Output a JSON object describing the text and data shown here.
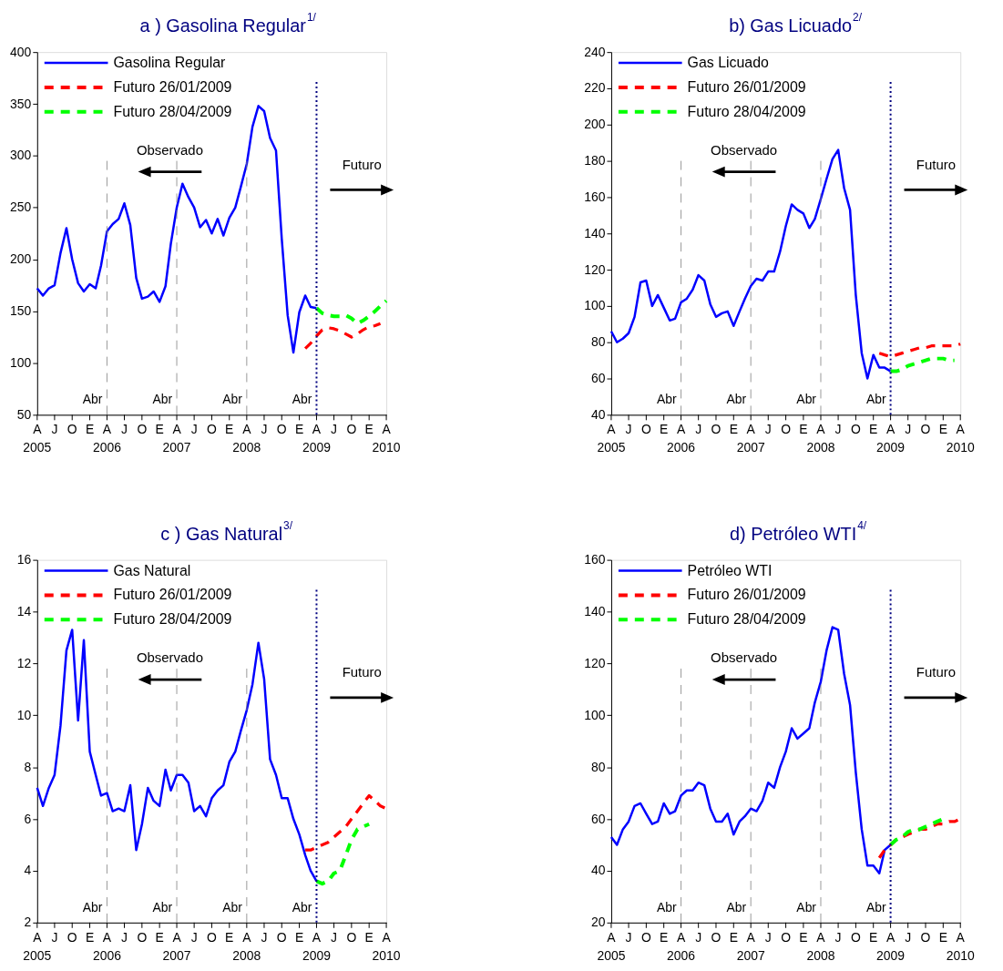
{
  "chart_data": [
    {
      "type": "line",
      "title": "a ) Gasolina Regular$^{1/}$",
      "legend": "top left",
      "x": [
        "2005-04",
        "2005-05",
        "2005-06",
        "2005-07",
        "2005-08",
        "2005-09",
        "2005-10",
        "2005-11",
        "2005-12",
        "2006-01",
        "2006-02",
        "2006-03",
        "2006-04",
        "2006-05",
        "2006-06",
        "2006-07",
        "2006-08",
        "2006-09",
        "2006-10",
        "2006-11",
        "2006-12",
        "2007-01",
        "2007-02",
        "2007-03",
        "2007-04",
        "2007-05",
        "2007-06",
        "2007-07",
        "2007-08",
        "2007-09",
        "2007-10",
        "2007-11",
        "2007-12",
        "2008-01",
        "2008-02",
        "2008-03",
        "2008-04",
        "2008-05",
        "2008-06",
        "2008-07",
        "2008-08",
        "2008-09",
        "2008-10",
        "2008-11",
        "2008-12",
        "2009-01",
        "2009-02",
        "2009-03",
        "2009-04"
      ],
      "xlim": [
        "2005-04",
        "2010-04"
      ],
      "xticks": [
        {
          "value": "2005-04",
          "label": "2005"
        },
        {
          "value": "2005-07",
          "label": null
        },
        {
          "value": "2005-10",
          "label": null
        },
        {
          "value": "2006-01",
          "label": null
        },
        {
          "value": "2006-04",
          "label": "2006"
        },
        {
          "value": "2006-07",
          "label": null
        },
        {
          "value": "2006-10",
          "label": null
        },
        {
          "value": "2007-01",
          "label": null
        },
        {
          "value": "2007-04",
          "label": "2007"
        },
        {
          "value": "2007-07",
          "label": null
        },
        {
          "value": "2007-10",
          "label": null
        },
        {
          "value": "2008-01",
          "label": null
        },
        {
          "value": "2008-04",
          "label": "2008"
        },
        {
          "value": "2008-07",
          "label": null
        },
        {
          "value": "2008-10",
          "label": null
        },
        {
          "value": "2009-01",
          "label": null
        },
        {
          "value": "2009-04",
          "label": "2009"
        },
        {
          "value": "2009-07",
          "label": null
        },
        {
          "value": "2009-10",
          "label": null
        },
        {
          "value": "2010-01",
          "label": null
        },
        {
          "value": "2010-04",
          "label": "2010"
        }
      ],
      "ylim": [
        50,
        400
      ],
      "yticks": [
        50,
        100,
        150,
        200,
        250,
        300,
        350,
        400
      ],
      "series": [
        {
          "name": "Gasolina Regular",
          "color": "#0000ff",
          "line_style": "solid",
          "values": [
            172,
            165,
            172,
            175,
            206,
            230,
            200,
            177,
            169,
            176,
            172,
            194,
            227,
            234,
            239,
            254,
            233,
            182,
            162,
            164,
            169,
            159,
            174,
            215,
            250,
            273,
            260,
            250,
            231,
            238,
            225,
            239,
            223,
            240,
            250,
            270,
            292,
            328,
            348,
            343,
            317,
            305,
            220,
            146,
            110,
            149,
            165,
            154,
            153
          ]
        },
        {
          "name": "Futuro 26/01/2009",
          "color": "#ff0000",
          "line_style": "dashed",
          "x": [
            "2009-02",
            "2009-03",
            "2009-04",
            "2009-05",
            "2009-06",
            "2009-07",
            "2009-08",
            "2009-09",
            "2009-10",
            "2009-11",
            "2009-12",
            "2010-01",
            "2010-02",
            "2010-03"
          ],
          "values": [
            114,
            119,
            126,
            132,
            134,
            133,
            131,
            128,
            125,
            128,
            132,
            135,
            136,
            138
          ]
        },
        {
          "name": "Futuro 28/04/2009",
          "color": "#00ff00",
          "line_style": "dashed",
          "x": [
            "2009-04",
            "2009-05",
            "2009-06",
            "2009-07",
            "2009-08",
            "2009-09",
            "2009-10",
            "2009-11",
            "2009-12",
            "2010-01",
            "2010-02",
            "2010-03",
            "2010-04"
          ],
          "values": [
            153,
            148,
            146,
            145,
            145,
            146,
            143,
            138,
            141,
            145,
            150,
            155,
            160
          ]
        }
      ],
      "ref_lines": [
        {
          "axis": "x",
          "value": "2006-04",
          "label": "Abr",
          "color": "#808080",
          "line_style": "dashed"
        },
        {
          "axis": "x",
          "value": "2007-04",
          "label": "Abr",
          "color": "#808080",
          "line_style": "dashed"
        },
        {
          "axis": "x",
          "value": "2008-04",
          "label": "Abr",
          "color": "#808080",
          "line_style": "dashed"
        },
        {
          "axis": "x",
          "value": "2009-04",
          "label": "Abr",
          "color": "#000080",
          "line_style": "dotted"
        }
      ],
      "annotations": [
        "Observado",
        "Futuro",
        "A",
        "J",
        "O",
        "E",
        "A",
        "J",
        "O",
        "E",
        "A",
        "J",
        "O",
        "E",
        "A",
        "J",
        "O",
        "E",
        "A",
        "J",
        "O",
        "E",
        "A"
      ]
    },
    {
      "type": "line",
      "title": "b) Gas Licuado$^{2/}$",
      "legend": "top left",
      "x": [
        "2005-04",
        "2005-05",
        "2005-06",
        "2005-07",
        "2005-08",
        "2005-09",
        "2005-10",
        "2005-11",
        "2005-12",
        "2006-01",
        "2006-02",
        "2006-03",
        "2006-04",
        "2006-05",
        "2006-06",
        "2006-07",
        "2006-08",
        "2006-09",
        "2006-10",
        "2006-11",
        "2006-12",
        "2007-01",
        "2007-02",
        "2007-03",
        "2007-04",
        "2007-05",
        "2007-06",
        "2007-07",
        "2007-08",
        "2007-09",
        "2007-10",
        "2007-11",
        "2007-12",
        "2008-01",
        "2008-02",
        "2008-03",
        "2008-04",
        "2008-05",
        "2008-06",
        "2008-07",
        "2008-08",
        "2008-09",
        "2008-10",
        "2008-11",
        "2008-12",
        "2009-01",
        "2009-02",
        "2009-03",
        "2009-04"
      ],
      "xlim": [
        "2005-04",
        "2010-04"
      ],
      "xticks": [
        {
          "value": "2005-04",
          "label": "2005"
        },
        {
          "value": "2005-07",
          "label": null
        },
        {
          "value": "2005-10",
          "label": null
        },
        {
          "value": "2006-01",
          "label": null
        },
        {
          "value": "2006-04",
          "label": "2006"
        },
        {
          "value": "2006-07",
          "label": null
        },
        {
          "value": "2006-10",
          "label": null
        },
        {
          "value": "2007-01",
          "label": null
        },
        {
          "value": "2007-04",
          "label": "2007"
        },
        {
          "value": "2007-07",
          "label": null
        },
        {
          "value": "2007-10",
          "label": null
        },
        {
          "value": "2008-01",
          "label": null
        },
        {
          "value": "2008-04",
          "label": "2008"
        },
        {
          "value": "2008-07",
          "label": null
        },
        {
          "value": "2008-10",
          "label": null
        },
        {
          "value": "2009-01",
          "label": null
        },
        {
          "value": "2009-04",
          "label": "2009"
        },
        {
          "value": "2009-07",
          "label": null
        },
        {
          "value": "2009-10",
          "label": null
        },
        {
          "value": "2010-01",
          "label": null
        },
        {
          "value": "2010-04",
          "label": "2010"
        }
      ],
      "ylim": [
        40,
        240
      ],
      "yticks": [
        40,
        60,
        80,
        100,
        120,
        140,
        160,
        180,
        200,
        220,
        240
      ],
      "series": [
        {
          "name": "Gas Licuado",
          "color": "#0000ff",
          "line_style": "solid",
          "values": [
            86,
            80,
            82,
            85,
            94,
            113,
            114,
            100,
            106,
            99,
            92,
            93,
            102,
            104,
            109,
            117,
            114,
            101,
            94,
            96,
            97,
            89,
            97,
            104,
            111,
            115,
            114,
            119,
            119,
            130,
            144,
            156,
            153,
            151,
            143,
            148,
            159,
            170,
            181,
            186,
            165,
            153,
            106,
            74,
            60,
            73,
            66,
            66,
            64
          ]
        },
        {
          "name": "Futuro 26/01/2009",
          "color": "#ff0000",
          "line_style": "dashed",
          "x": [
            "2009-02",
            "2009-03",
            "2009-04",
            "2009-05",
            "2009-06",
            "2009-07",
            "2009-08",
            "2009-09",
            "2009-10",
            "2009-11",
            "2009-12",
            "2010-01",
            "2010-02",
            "2010-03",
            "2010-04"
          ],
          "values": [
            74,
            73,
            72,
            73,
            74,
            75,
            76,
            77,
            77,
            78,
            78,
            78,
            78,
            78,
            79
          ]
        },
        {
          "name": "Futuro 28/04/2009",
          "color": "#00ff00",
          "line_style": "dashed",
          "x": [
            "2009-04",
            "2009-05",
            "2009-06",
            "2009-07",
            "2009-08",
            "2009-09",
            "2009-10",
            "2009-11",
            "2009-12",
            "2010-01",
            "2010-02",
            "2010-03"
          ],
          "values": [
            64,
            64,
            65,
            67,
            68,
            69,
            70,
            71,
            71,
            71,
            70,
            70
          ]
        }
      ],
      "ref_lines": [
        {
          "axis": "x",
          "value": "2006-04",
          "label": "Abr",
          "color": "#808080",
          "line_style": "dashed"
        },
        {
          "axis": "x",
          "value": "2007-04",
          "label": "Abr",
          "color": "#808080",
          "line_style": "dashed"
        },
        {
          "axis": "x",
          "value": "2008-04",
          "label": "Abr",
          "color": "#808080",
          "line_style": "dashed"
        },
        {
          "axis": "x",
          "value": "2009-04",
          "label": "Abr",
          "color": "#000080",
          "line_style": "dotted"
        }
      ],
      "annotations": [
        "Observado",
        "Futuro",
        "A",
        "J",
        "O",
        "E",
        "A",
        "J",
        "O",
        "E",
        "A",
        "J",
        "O",
        "E",
        "A",
        "J",
        "O",
        "E",
        "A",
        "J",
        "O",
        "E",
        "A"
      ]
    },
    {
      "type": "line",
      "title": "c ) Gas Natural$^{3/}$",
      "legend": "top left",
      "x": [
        "2005-04",
        "2005-05",
        "2005-06",
        "2005-07",
        "2005-08",
        "2005-09",
        "2005-10",
        "2005-11",
        "2005-12",
        "2006-01",
        "2006-02",
        "2006-03",
        "2006-04",
        "2006-05",
        "2006-06",
        "2006-07",
        "2006-08",
        "2006-09",
        "2006-10",
        "2006-11",
        "2006-12",
        "2007-01",
        "2007-02",
        "2007-03",
        "2007-04",
        "2007-05",
        "2007-06",
        "2007-07",
        "2007-08",
        "2007-09",
        "2007-10",
        "2007-11",
        "2007-12",
        "2008-01",
        "2008-02",
        "2008-03",
        "2008-04",
        "2008-05",
        "2008-06",
        "2008-07",
        "2008-08",
        "2008-09",
        "2008-10",
        "2008-11",
        "2008-12",
        "2009-01",
        "2009-02",
        "2009-03",
        "2009-04"
      ],
      "xlim": [
        "2005-04",
        "2010-04"
      ],
      "xticks": [
        {
          "value": "2005-04",
          "label": "2005"
        },
        {
          "value": "2005-07",
          "label": null
        },
        {
          "value": "2005-10",
          "label": null
        },
        {
          "value": "2006-01",
          "label": null
        },
        {
          "value": "2006-04",
          "label": "2006"
        },
        {
          "value": "2006-07",
          "label": null
        },
        {
          "value": "2006-10",
          "label": null
        },
        {
          "value": "2007-01",
          "label": null
        },
        {
          "value": "2007-04",
          "label": "2007"
        },
        {
          "value": "2007-07",
          "label": null
        },
        {
          "value": "2007-10",
          "label": null
        },
        {
          "value": "2008-01",
          "label": null
        },
        {
          "value": "2008-04",
          "label": "2008"
        },
        {
          "value": "2008-07",
          "label": null
        },
        {
          "value": "2008-10",
          "label": null
        },
        {
          "value": "2009-01",
          "label": null
        },
        {
          "value": "2009-04",
          "label": "2009"
        },
        {
          "value": "2009-07",
          "label": null
        },
        {
          "value": "2009-10",
          "label": null
        },
        {
          "value": "2010-01",
          "label": null
        },
        {
          "value": "2010-04",
          "label": "2010"
        }
      ],
      "ylim": [
        2,
        16
      ],
      "yticks": [
        2,
        4,
        6,
        8,
        10,
        12,
        14,
        16
      ],
      "series": [
        {
          "name": "Gas Natural",
          "color": "#0000ff",
          "line_style": "solid",
          "values": [
            7.2,
            6.5,
            7.2,
            7.7,
            9.6,
            12.5,
            13.3,
            9.8,
            12.9,
            8.6,
            7.7,
            6.9,
            7.0,
            6.3,
            6.4,
            6.3,
            7.3,
            4.8,
            5.8,
            7.2,
            6.7,
            6.5,
            7.9,
            7.1,
            7.7,
            7.7,
            7.4,
            6.3,
            6.5,
            6.1,
            6.8,
            7.1,
            7.3,
            8.2,
            8.6,
            9.4,
            10.2,
            11.2,
            12.8,
            11.4,
            8.3,
            7.7,
            6.8,
            6.8,
            6.0,
            5.4,
            4.6,
            4.0,
            3.6
          ]
        },
        {
          "name": "Futuro 26/01/2009",
          "color": "#ff0000",
          "line_style": "dashed",
          "x": [
            "2009-02",
            "2009-03",
            "2009-04",
            "2009-05",
            "2009-06",
            "2009-07",
            "2009-08",
            "2009-09",
            "2009-10",
            "2009-11",
            "2009-12",
            "2010-01",
            "2010-02",
            "2010-03",
            "2010-04"
          ],
          "values": [
            4.8,
            4.8,
            4.9,
            5.0,
            5.1,
            5.3,
            5.5,
            5.7,
            6.0,
            6.3,
            6.6,
            6.9,
            6.7,
            6.5,
            6.4
          ]
        },
        {
          "name": "Futuro 28/04/2009",
          "color": "#00ff00",
          "line_style": "dashed",
          "x": [
            "2009-04",
            "2009-05",
            "2009-06",
            "2009-07",
            "2009-08",
            "2009-09",
            "2009-10",
            "2009-11",
            "2009-12",
            "2010-01"
          ],
          "values": [
            3.6,
            3.5,
            3.6,
            3.9,
            4.0,
            4.6,
            5.2,
            5.6,
            5.7,
            5.8
          ]
        }
      ],
      "ref_lines": [
        {
          "axis": "x",
          "value": "2006-04",
          "label": "Abr",
          "color": "#808080",
          "line_style": "dashed"
        },
        {
          "axis": "x",
          "value": "2007-04",
          "label": "Abr",
          "color": "#808080",
          "line_style": "dashed"
        },
        {
          "axis": "x",
          "value": "2008-04",
          "label": "Abr",
          "color": "#808080",
          "line_style": "dashed"
        },
        {
          "axis": "x",
          "value": "2009-04",
          "label": "Abr",
          "color": "#000080",
          "line_style": "dotted"
        }
      ],
      "annotations": [
        "Observado",
        "Futuro",
        "A",
        "J",
        "O",
        "E",
        "A",
        "J",
        "O",
        "E",
        "A",
        "J",
        "O",
        "E",
        "A",
        "J",
        "O",
        "E",
        "A",
        "J",
        "O",
        "E",
        "A"
      ]
    },
    {
      "type": "line",
      "title": "d) Petróleo WTI$^{4/}$",
      "legend": "top left",
      "x": [
        "2005-04",
        "2005-05",
        "2005-06",
        "2005-07",
        "2005-08",
        "2005-09",
        "2005-10",
        "2005-11",
        "2005-12",
        "2006-01",
        "2006-02",
        "2006-03",
        "2006-04",
        "2006-05",
        "2006-06",
        "2006-07",
        "2006-08",
        "2006-09",
        "2006-10",
        "2006-11",
        "2006-12",
        "2007-01",
        "2007-02",
        "2007-03",
        "2007-04",
        "2007-05",
        "2007-06",
        "2007-07",
        "2007-08",
        "2007-09",
        "2007-10",
        "2007-11",
        "2007-12",
        "2008-01",
        "2008-02",
        "2008-03",
        "2008-04",
        "2008-05",
        "2008-06",
        "2008-07",
        "2008-08",
        "2008-09",
        "2008-10",
        "2008-11",
        "2008-12",
        "2009-01",
        "2009-02",
        "2009-03",
        "2009-04"
      ],
      "xlim": [
        "2005-04",
        "2010-04"
      ],
      "xticks": [
        {
          "value": "2005-04",
          "label": "2005"
        },
        {
          "value": "2005-07",
          "label": null
        },
        {
          "value": "2005-10",
          "label": null
        },
        {
          "value": "2006-01",
          "label": null
        },
        {
          "value": "2006-04",
          "label": "2006"
        },
        {
          "value": "2006-07",
          "label": null
        },
        {
          "value": "2006-10",
          "label": null
        },
        {
          "value": "2007-01",
          "label": null
        },
        {
          "value": "2007-04",
          "label": "2007"
        },
        {
          "value": "2007-07",
          "label": null
        },
        {
          "value": "2007-10",
          "label": null
        },
        {
          "value": "2008-01",
          "label": null
        },
        {
          "value": "2008-04",
          "label": "2008"
        },
        {
          "value": "2008-07",
          "label": null
        },
        {
          "value": "2008-10",
          "label": null
        },
        {
          "value": "2009-01",
          "label": null
        },
        {
          "value": "2009-04",
          "label": "2009"
        },
        {
          "value": "2009-07",
          "label": null
        },
        {
          "value": "2009-10",
          "label": null
        },
        {
          "value": "2010-01",
          "label": null
        },
        {
          "value": "2010-04",
          "label": "2010"
        }
      ],
      "ylim": [
        20,
        160
      ],
      "yticks": [
        20,
        40,
        60,
        80,
        100,
        120,
        140,
        160
      ],
      "series": [
        {
          "name": "Petróleo WTI",
          "color": "#0000ff",
          "line_style": "solid",
          "values": [
            53,
            50,
            56,
            59,
            65,
            66,
            62,
            58,
            59,
            66,
            62,
            63,
            69,
            71,
            71,
            74,
            73,
            64,
            59,
            59,
            62,
            54,
            59,
            61,
            64,
            63,
            67,
            74,
            72,
            80,
            86,
            95,
            91,
            93,
            95,
            105,
            113,
            125,
            134,
            133,
            116,
            104,
            78,
            56,
            42,
            42,
            39,
            48,
            50
          ]
        },
        {
          "name": "Futuro 26/01/2009",
          "color": "#ff0000",
          "line_style": "dashed",
          "x": [
            "2009-02",
            "2009-03",
            "2009-04",
            "2009-05",
            "2009-06",
            "2009-07",
            "2009-08",
            "2009-09",
            "2009-10",
            "2009-11",
            "2009-12",
            "2010-01",
            "2010-02",
            "2010-03",
            "2010-04"
          ],
          "values": [
            45,
            48,
            50,
            52,
            53,
            54,
            55,
            56,
            56,
            57,
            58,
            58,
            59,
            59,
            60
          ]
        },
        {
          "name": "Futuro 28/04/2009",
          "color": "#00ff00",
          "line_style": "dashed",
          "x": [
            "2009-04",
            "2009-05",
            "2009-06",
            "2009-07",
            "2009-08",
            "2009-09",
            "2009-10",
            "2009-11",
            "2009-12",
            "2010-01"
          ],
          "values": [
            50,
            52,
            53,
            55,
            56,
            56,
            57,
            58,
            59,
            60
          ]
        }
      ],
      "ref_lines": [
        {
          "axis": "x",
          "value": "2006-04",
          "label": "Abr",
          "color": "#808080",
          "line_style": "dashed"
        },
        {
          "axis": "x",
          "value": "2007-04",
          "label": "Abr",
          "color": "#808080",
          "line_style": "dashed"
        },
        {
          "axis": "x",
          "value": "2008-04",
          "label": "Abr",
          "color": "#808080",
          "line_style": "dashed"
        },
        {
          "axis": "x",
          "value": "2009-04",
          "label": "Abr",
          "color": "#000080",
          "line_style": "dotted"
        }
      ],
      "annotations": [
        "Observado",
        "Futuro",
        "A",
        "J",
        "O",
        "E",
        "A",
        "J",
        "O",
        "E",
        "A",
        "J",
        "O",
        "E",
        "A",
        "J",
        "O",
        "E",
        "A",
        "J",
        "O",
        "E",
        "A"
      ]
    }
  ]
}
